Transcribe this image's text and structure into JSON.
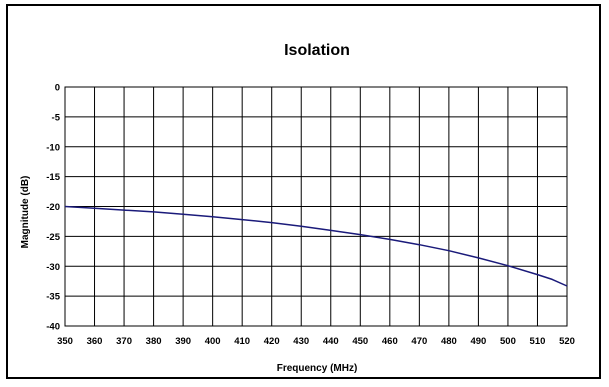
{
  "chart_data": {
    "type": "line",
    "title": "Isolation",
    "xlabel": "Frequency (MHz)",
    "ylabel": "Magnitude (dB)",
    "xlim": [
      350,
      520
    ],
    "ylim": [
      -40,
      0
    ],
    "xticks": [
      350,
      360,
      370,
      380,
      390,
      400,
      410,
      420,
      430,
      440,
      450,
      460,
      470,
      480,
      490,
      500,
      510,
      520
    ],
    "yticks": [
      0,
      -5,
      -10,
      -15,
      -20,
      -25,
      -30,
      -35,
      -40
    ],
    "grid": true,
    "legend": "none",
    "series_color": "#1a1a7a",
    "series": [
      {
        "x": [
          350,
          360,
          370,
          380,
          390,
          400,
          410,
          420,
          430,
          440,
          450,
          460,
          470,
          480,
          490,
          500,
          510,
          515,
          520
        ],
        "y": [
          -20.0,
          -20.3,
          -20.6,
          -20.9,
          -21.3,
          -21.7,
          -22.2,
          -22.7,
          -23.3,
          -24.0,
          -24.7,
          -25.5,
          -26.4,
          -27.4,
          -28.6,
          -29.9,
          -31.4,
          -32.2,
          -33.3
        ]
      }
    ]
  }
}
